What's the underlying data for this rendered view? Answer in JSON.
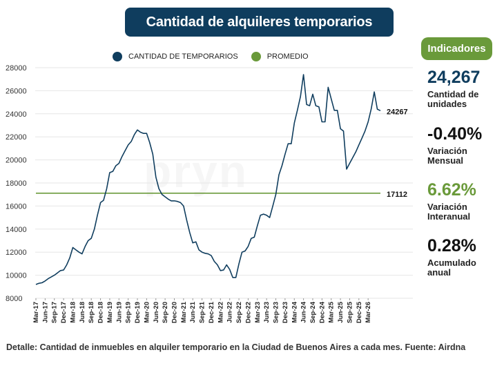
{
  "title": "Cantidad de alquileres temporarios",
  "legend": {
    "series_label": "CANTIDAD DE TEMPORARIOS",
    "average_label": "PROMEDIO"
  },
  "colors": {
    "series": "#0f3d5e",
    "average": "#6a9a3a",
    "indicator_blue": "#0f3d5e",
    "indicator_green": "#6a9a3a",
    "indicator_black": "#111111"
  },
  "indicators": {
    "header": "Indicadores",
    "items": [
      {
        "value": "24,267",
        "label_line1": "Cantidad de",
        "label_line2": "unidades",
        "color": "#0f3d5e"
      },
      {
        "value": "-0.40%",
        "label_line1": "Variación",
        "label_line2": "Mensual",
        "color": "#111111"
      },
      {
        "value": "6.62%",
        "label_line1": "Variación",
        "label_line2": "Interanual",
        "color": "#6a9a3a"
      },
      {
        "value": "0.28%",
        "label_line1": "Acumulado",
        "label_line2": "anual",
        "color": "#111111"
      }
    ]
  },
  "footer": "Detalle: Cantidad de inmuebles en alquiler temporario en la Ciudad de Buenos Aires a cada mes. Fuente: Airdna",
  "watermark": "pryn",
  "chart_data": {
    "type": "line",
    "ylim": [
      8000,
      28000
    ],
    "yticks": [
      8000,
      10000,
      12000,
      14000,
      16000,
      18000,
      20000,
      22000,
      24000,
      26000,
      28000
    ],
    "x_tick_labels": [
      "Mar-17",
      "Jun-17",
      "Sep-17",
      "Dec-17",
      "Mar-18",
      "Jun-18",
      "Sep-18",
      "Dec-18",
      "Mar-19",
      "Jun-19",
      "Sep-19",
      "Dec-19",
      "Mar-20",
      "Jun-20",
      "Sep-20",
      "Dec-20",
      "Mar-21",
      "Jun-21",
      "Sep-21",
      "Dec-21",
      "Mar-22",
      "Jun-22",
      "Sep-22",
      "Dec-22",
      "Mar-23",
      "Jun-23",
      "Sep-23",
      "Dec-23",
      "Mar-24",
      "Jun-24",
      "Sep-24",
      "Dec-24",
      "Mar-25",
      "Jun-25",
      "Sep-25",
      "Dec-25",
      "Mar-26"
    ],
    "series": [
      {
        "name": "CANTIDAD DE TEMPORARIOS",
        "end_label": "24267",
        "values": [
          9200,
          9300,
          9350,
          9500,
          9700,
          9850,
          10000,
          10200,
          10400,
          10450,
          10900,
          11500,
          12400,
          12200,
          12000,
          11850,
          12500,
          13000,
          13200,
          14000,
          15200,
          16300,
          16500,
          17500,
          18900,
          19000,
          19500,
          19700,
          20300,
          20800,
          21300,
          21600,
          22200,
          22600,
          22400,
          22300,
          22300,
          21500,
          20500,
          18500,
          17500,
          17000,
          16800,
          16600,
          16450,
          16450,
          16400,
          16300,
          16000,
          14800,
          13700,
          12800,
          12900,
          12200,
          12000,
          11900,
          11850,
          11700,
          11200,
          10900,
          10400,
          10450,
          10900,
          10500,
          9800,
          9800,
          11000,
          12000,
          12100,
          12500,
          13200,
          13300,
          14300,
          15200,
          15300,
          15200,
          15000,
          16000,
          17000,
          18700,
          19500,
          20500,
          21400,
          21400,
          23200,
          24300,
          25500,
          27400,
          24800,
          24700,
          25700,
          24700,
          24600,
          23300,
          23300,
          26300,
          25300,
          24300,
          24300,
          22700,
          22500,
          19200,
          19700,
          20200,
          20700,
          21300,
          21900,
          22500,
          23300,
          24400,
          25900,
          24400,
          24267
        ]
      },
      {
        "name": "PROMEDIO",
        "end_label": "17112",
        "value": 17112
      }
    ]
  }
}
